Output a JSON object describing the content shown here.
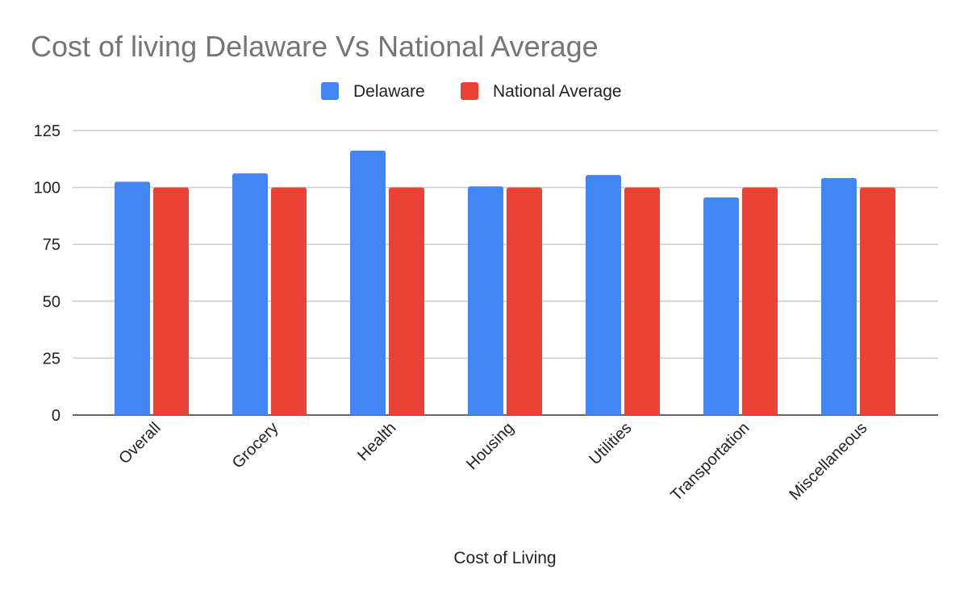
{
  "chart_data": {
    "type": "bar",
    "title": "Cost of living Delaware Vs National Average",
    "xlabel": "Cost of Living",
    "ylabel": "",
    "ylim": [
      0,
      125
    ],
    "yticks": [
      0,
      25,
      50,
      75,
      100,
      125
    ],
    "grid": true,
    "legend_position": "top",
    "categories": [
      "Overall",
      "Grocery",
      "Health",
      "Housing",
      "Utilities",
      "Transportation",
      "Miscellaneous"
    ],
    "series": [
      {
        "name": "Delaware",
        "color": "#4285f4",
        "values": [
          102.5,
          106.2,
          116.2,
          100.5,
          105.5,
          95.6,
          104.1
        ]
      },
      {
        "name": "National Average",
        "color": "#ea4335",
        "values": [
          100,
          100,
          100,
          100,
          100,
          100,
          100
        ]
      }
    ]
  }
}
